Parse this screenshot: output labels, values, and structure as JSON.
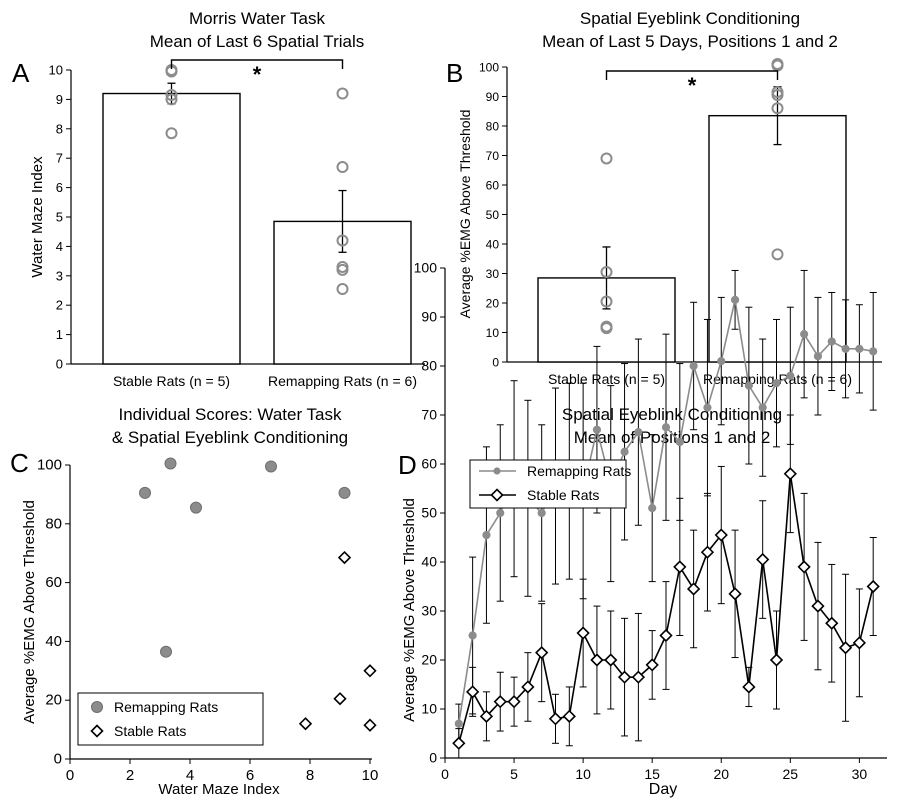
{
  "chart_data": [
    {
      "panel": "A",
      "type": "bar",
      "title": "Morris Water Task",
      "subtitle": "Mean of Last 6 Spatial Trials",
      "xlabel": "",
      "ylabel": "Water Maze Index",
      "ylim": [
        0,
        10
      ],
      "yticks": [
        0,
        1,
        2,
        3,
        4,
        5,
        6,
        7,
        8,
        9,
        10
      ],
      "categories": [
        "Stable Rats (n = 5)",
        "Remapping Rats (n = 6)"
      ],
      "values": [
        9.2,
        4.85
      ],
      "errors": [
        0.35,
        1.05
      ],
      "points": [
        [
          7.85,
          9.0,
          9.15,
          9.95,
          10.0
        ],
        [
          2.55,
          3.2,
          3.3,
          4.2,
          6.7,
          9.2
        ]
      ],
      "significance": "*"
    },
    {
      "panel": "B",
      "type": "bar",
      "title": "Spatial Eyeblink Conditioning",
      "subtitle": "Mean of Last 5 Days, Positions 1 and 2",
      "xlabel": "",
      "ylabel": "Average %EMG Above Threshold",
      "ylim": [
        0,
        100
      ],
      "yticks": [
        0,
        10,
        20,
        30,
        40,
        50,
        60,
        70,
        80,
        90,
        100
      ],
      "categories": [
        "Stable Rats (n = 5)",
        "Remapping Rats (n = 6)"
      ],
      "values": [
        28.5,
        83.5
      ],
      "errors": [
        10.5,
        9.8
      ],
      "points": [
        [
          11.5,
          12.0,
          20.5,
          30.5,
          69.0
        ],
        [
          36.5,
          86.0,
          90.5,
          91.5,
          100.5,
          101.0
        ]
      ],
      "significance": "*"
    },
    {
      "panel": "C",
      "type": "scatter",
      "title": "Individual Scores: Water Task",
      "subtitle": "& Spatial Eyeblink Conditioning",
      "xlabel": "Water Maze Index",
      "ylabel": "Average %EMG Above Threshold",
      "xlim": [
        0,
        10
      ],
      "ylim": [
        0,
        100
      ],
      "xticks": [
        0,
        2,
        4,
        6,
        8,
        10
      ],
      "yticks": [
        0,
        20,
        40,
        60,
        80,
        100
      ],
      "legend_position": "bottom-left",
      "series": [
        {
          "name": "Remapping Rats",
          "color": "#8c8c8c",
          "marker": "circle",
          "x": [
            2.5,
            3.35,
            4.2,
            6.7,
            9.15,
            3.2
          ],
          "y": [
            90.5,
            100.5,
            85.5,
            99.5,
            90.5,
            36.5
          ]
        },
        {
          "name": "Stable Rats",
          "color": "#000000",
          "marker": "diamond",
          "x": [
            9.15,
            10.0,
            9.0,
            10.0,
            7.85
          ],
          "y": [
            68.5,
            30.0,
            20.5,
            11.5,
            12.0
          ]
        }
      ]
    },
    {
      "panel": "D",
      "type": "line",
      "title": "Spatial Eyeblink Conditioning",
      "subtitle": "Mean of Positions 1 and 2",
      "xlabel": "Day",
      "ylabel": "Average %EMG Above Threshold",
      "xlim": [
        0,
        32
      ],
      "ylim": [
        0,
        100
      ],
      "xticks": [
        0,
        5,
        10,
        15,
        20,
        25,
        30
      ],
      "yticks": [
        0,
        10,
        20,
        30,
        40,
        50,
        60,
        70,
        80,
        90,
        100
      ],
      "legend_position": "top-left",
      "x": [
        1,
        2,
        3,
        4,
        5,
        6,
        7,
        8,
        9,
        10,
        11,
        12,
        13,
        14,
        15,
        16,
        17,
        18,
        19,
        20,
        21,
        22,
        23,
        24,
        25,
        26,
        27,
        28,
        29,
        30,
        31
      ],
      "series": [
        {
          "name": "Remapping Rats",
          "color": "#8c8c8c",
          "marker": "circle",
          "values": [
            7,
            25,
            45.5,
            50,
            57,
            53,
            50,
            55.5,
            56.5,
            54.5,
            67,
            56,
            62.5,
            66.5,
            51,
            67.5,
            64.5,
            80,
            71.5,
            81,
            93.5,
            76,
            71.5,
            76.5,
            78,
            86.5,
            82,
            85,
            83.5,
            83.5,
            83
          ],
          "errors": [
            4,
            16,
            18,
            18,
            20,
            20,
            18,
            20,
            20,
            22,
            17,
            20,
            18,
            19,
            15,
            19,
            16,
            13,
            18,
            13,
            6,
            16,
            14,
            13,
            14,
            13,
            12,
            10,
            10,
            9,
            12
          ]
        },
        {
          "name": "Stable Rats",
          "color": "#000000",
          "marker": "diamond",
          "values": [
            3,
            13.5,
            8.5,
            11.5,
            11.5,
            14.5,
            21.5,
            8,
            8.5,
            25.5,
            20,
            20,
            16.5,
            16.5,
            19,
            25,
            39,
            34.5,
            42,
            45.5,
            33.5,
            14.5,
            40.5,
            20,
            58,
            39,
            31,
            27.5,
            22.5,
            23.5,
            35
          ],
          "errors": [
            3,
            5,
            5,
            6,
            5,
            7,
            10,
            5,
            6,
            11,
            11,
            10,
            12,
            13,
            7,
            11,
            14,
            12,
            12,
            14,
            13,
            4,
            12,
            10,
            12,
            15,
            13,
            12,
            15,
            11,
            10
          ]
        }
      ]
    }
  ],
  "panel_letters": [
    "A",
    "B",
    "C",
    "D"
  ]
}
